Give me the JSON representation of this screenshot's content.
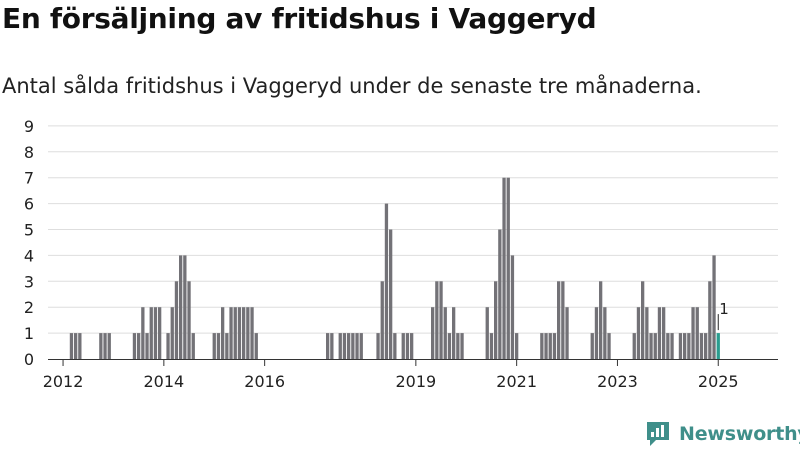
{
  "title": "En försäljning av fritidshus i Vaggeryd",
  "subtitle": "Antal sålda fritidshus i Vaggeryd under de senaste tre månaderna.",
  "brand": "Newsworthy",
  "colors": {
    "bar": "#737277",
    "highlight": "#2a9d8f",
    "grid": "#dedede",
    "brand": "#3f8f8a"
  },
  "chart_data": {
    "type": "bar",
    "title": "En försäljning av fritidshus i Vaggeryd",
    "subtitle": "Antal sålda fritidshus i Vaggeryd under de senaste tre månaderna.",
    "xlabel": "",
    "ylabel": "",
    "ylim": [
      0,
      9
    ],
    "yticks": [
      0,
      1,
      2,
      3,
      4,
      5,
      6,
      7,
      8,
      9
    ],
    "grid": true,
    "x_tick_labels": [
      "2012",
      "2014",
      "2016",
      "2019",
      "2021",
      "2023",
      "2025"
    ],
    "x_tick_months": [
      "2012-01",
      "2014-01",
      "2016-01",
      "2019-01",
      "2021-01",
      "2023-01",
      "2025-01"
    ],
    "highlight": {
      "month": "2025-01",
      "value": 1,
      "label": "1"
    },
    "series": [
      {
        "values": [
          {
            "month": "2012-03",
            "value": 1
          },
          {
            "month": "2012-04",
            "value": 1
          },
          {
            "month": "2012-05",
            "value": 1
          },
          {
            "month": "2012-10",
            "value": 1
          },
          {
            "month": "2012-11",
            "value": 1
          },
          {
            "month": "2012-12",
            "value": 1
          },
          {
            "month": "2013-06",
            "value": 1
          },
          {
            "month": "2013-07",
            "value": 1
          },
          {
            "month": "2013-08",
            "value": 2
          },
          {
            "month": "2013-09",
            "value": 1
          },
          {
            "month": "2013-10",
            "value": 2
          },
          {
            "month": "2013-11",
            "value": 2
          },
          {
            "month": "2013-12",
            "value": 2
          },
          {
            "month": "2014-02",
            "value": 1
          },
          {
            "month": "2014-03",
            "value": 2
          },
          {
            "month": "2014-04",
            "value": 3
          },
          {
            "month": "2014-05",
            "value": 4
          },
          {
            "month": "2014-06",
            "value": 4
          },
          {
            "month": "2014-07",
            "value": 3
          },
          {
            "month": "2014-08",
            "value": 1
          },
          {
            "month": "2015-01",
            "value": 1
          },
          {
            "month": "2015-02",
            "value": 1
          },
          {
            "month": "2015-03",
            "value": 2
          },
          {
            "month": "2015-04",
            "value": 1
          },
          {
            "month": "2015-05",
            "value": 2
          },
          {
            "month": "2015-06",
            "value": 2
          },
          {
            "month": "2015-07",
            "value": 2
          },
          {
            "month": "2015-08",
            "value": 2
          },
          {
            "month": "2015-09",
            "value": 2
          },
          {
            "month": "2015-10",
            "value": 2
          },
          {
            "month": "2015-11",
            "value": 1
          },
          {
            "month": "2017-04",
            "value": 1
          },
          {
            "month": "2017-05",
            "value": 1
          },
          {
            "month": "2017-07",
            "value": 1
          },
          {
            "month": "2017-08",
            "value": 1
          },
          {
            "month": "2017-09",
            "value": 1
          },
          {
            "month": "2017-10",
            "value": 1
          },
          {
            "month": "2017-11",
            "value": 1
          },
          {
            "month": "2017-12",
            "value": 1
          },
          {
            "month": "2018-04",
            "value": 1
          },
          {
            "month": "2018-05",
            "value": 3
          },
          {
            "month": "2018-06",
            "value": 6
          },
          {
            "month": "2018-07",
            "value": 5
          },
          {
            "month": "2018-08",
            "value": 1
          },
          {
            "month": "2018-10",
            "value": 1
          },
          {
            "month": "2018-11",
            "value": 1
          },
          {
            "month": "2018-12",
            "value": 1
          },
          {
            "month": "2019-05",
            "value": 2
          },
          {
            "month": "2019-06",
            "value": 3
          },
          {
            "month": "2019-07",
            "value": 3
          },
          {
            "month": "2019-08",
            "value": 2
          },
          {
            "month": "2019-09",
            "value": 1
          },
          {
            "month": "2019-10",
            "value": 2
          },
          {
            "month": "2019-11",
            "value": 1
          },
          {
            "month": "2019-12",
            "value": 1
          },
          {
            "month": "2020-06",
            "value": 2
          },
          {
            "month": "2020-07",
            "value": 1
          },
          {
            "month": "2020-08",
            "value": 3
          },
          {
            "month": "2020-09",
            "value": 5
          },
          {
            "month": "2020-10",
            "value": 7
          },
          {
            "month": "2020-11",
            "value": 7
          },
          {
            "month": "2020-12",
            "value": 4
          },
          {
            "month": "2021-01",
            "value": 1
          },
          {
            "month": "2021-07",
            "value": 1
          },
          {
            "month": "2021-08",
            "value": 1
          },
          {
            "month": "2021-09",
            "value": 1
          },
          {
            "month": "2021-10",
            "value": 1
          },
          {
            "month": "2021-11",
            "value": 3
          },
          {
            "month": "2021-12",
            "value": 3
          },
          {
            "month": "2022-01",
            "value": 2
          },
          {
            "month": "2022-07",
            "value": 1
          },
          {
            "month": "2022-08",
            "value": 2
          },
          {
            "month": "2022-09",
            "value": 3
          },
          {
            "month": "2022-10",
            "value": 2
          },
          {
            "month": "2022-11",
            "value": 1
          },
          {
            "month": "2023-05",
            "value": 1
          },
          {
            "month": "2023-06",
            "value": 2
          },
          {
            "month": "2023-07",
            "value": 3
          },
          {
            "month": "2023-08",
            "value": 2
          },
          {
            "month": "2023-09",
            "value": 1
          },
          {
            "month": "2023-10",
            "value": 1
          },
          {
            "month": "2023-11",
            "value": 2
          },
          {
            "month": "2023-12",
            "value": 2
          },
          {
            "month": "2024-01",
            "value": 1
          },
          {
            "month": "2024-02",
            "value": 1
          },
          {
            "month": "2024-04",
            "value": 1
          },
          {
            "month": "2024-05",
            "value": 1
          },
          {
            "month": "2024-06",
            "value": 1
          },
          {
            "month": "2024-07",
            "value": 2
          },
          {
            "month": "2024-08",
            "value": 2
          },
          {
            "month": "2024-09",
            "value": 1
          },
          {
            "month": "2024-10",
            "value": 1
          },
          {
            "month": "2024-11",
            "value": 3
          },
          {
            "month": "2024-12",
            "value": 4
          },
          {
            "month": "2025-01",
            "value": 1
          }
        ]
      }
    ]
  }
}
